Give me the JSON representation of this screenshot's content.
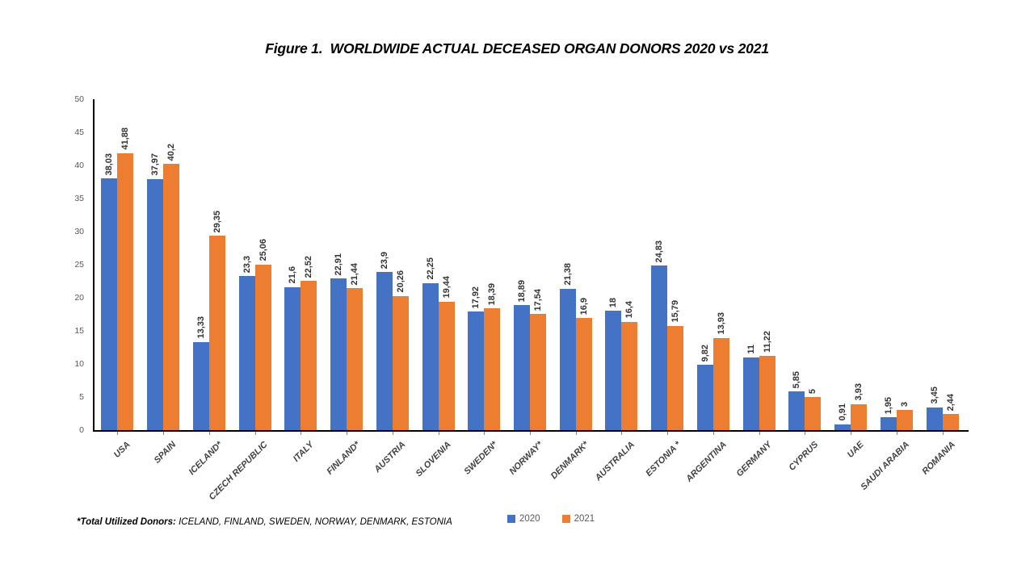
{
  "title": "Figure 1.  WORLDWIDE ACTUAL DECEASED ORGAN DONORS 2020 vs 2021",
  "chart_data": {
    "type": "bar",
    "title": "Figure 1.  WORLDWIDE ACTUAL DECEASED ORGAN DONORS 2020 vs 2021",
    "categories": [
      "USA",
      "SPAIN",
      "ICELAND*",
      "CZECH REPUBLIC",
      "ITALY",
      "FINLAND*",
      "AUSTRIA",
      "SLOVENIA",
      "SWEDEN*",
      "NORWAY*",
      "DENMARK*",
      "AUSTRALIA",
      "ESTONIA *",
      "ARGENTINA",
      "GERMANY",
      "CYPRUS",
      "UAE",
      "SAUDI ARABIA",
      "ROMANIA"
    ],
    "series": [
      {
        "name": "2020",
        "color": "#4472C4",
        "values": [
          38.03,
          37.97,
          13.33,
          23.3,
          21.6,
          22.91,
          23.9,
          22.25,
          17.92,
          18.89,
          21.38,
          18,
          24.83,
          9.82,
          11,
          5.85,
          0.91,
          1.95,
          3.45
        ],
        "labels": [
          "38,03",
          "37,97",
          "13,33",
          "23,3",
          "21,6",
          "22,91",
          "23,9",
          "22,25",
          "17,92",
          "18,89",
          "21,38",
          "18",
          "24,83",
          "9,82",
          "11",
          "5,85",
          "0,91",
          "1,95",
          "3,45"
        ]
      },
      {
        "name": "2021",
        "color": "#ED7D31",
        "values": [
          41.88,
          40.2,
          29.35,
          25.06,
          22.52,
          21.44,
          20.26,
          19.44,
          18.39,
          17.54,
          16.9,
          16.4,
          15.79,
          13.93,
          11.22,
          5,
          3.93,
          3,
          2.44
        ],
        "labels": [
          "41,88",
          "40,2",
          "29,35",
          "25,06",
          "22,52",
          "21,44",
          "20,26",
          "19,44",
          "18,39",
          "17,54",
          "16,9",
          "16,4",
          "15,79",
          "13,93",
          "11,22",
          "5",
          "3,93",
          "3",
          "2,44"
        ]
      }
    ],
    "xlabel": "",
    "ylabel": "",
    "ylim": [
      0,
      50
    ],
    "yticks": [
      0,
      5,
      10,
      15,
      20,
      25,
      30,
      35,
      40,
      45,
      50
    ],
    "grid": false,
    "legend_position": "bottom",
    "data_label_rotation": 90,
    "category_label_rotation": 45
  },
  "legend": {
    "items": [
      {
        "label": "2020",
        "color": "#4472C4"
      },
      {
        "label": "2021",
        "color": "#ED7D31"
      }
    ]
  },
  "footnote": {
    "label": "*Total Utilized Donors:",
    "countries": " ICELAND, FINLAND, SWEDEN, NORWAY, DENMARK, ESTONIA"
  }
}
